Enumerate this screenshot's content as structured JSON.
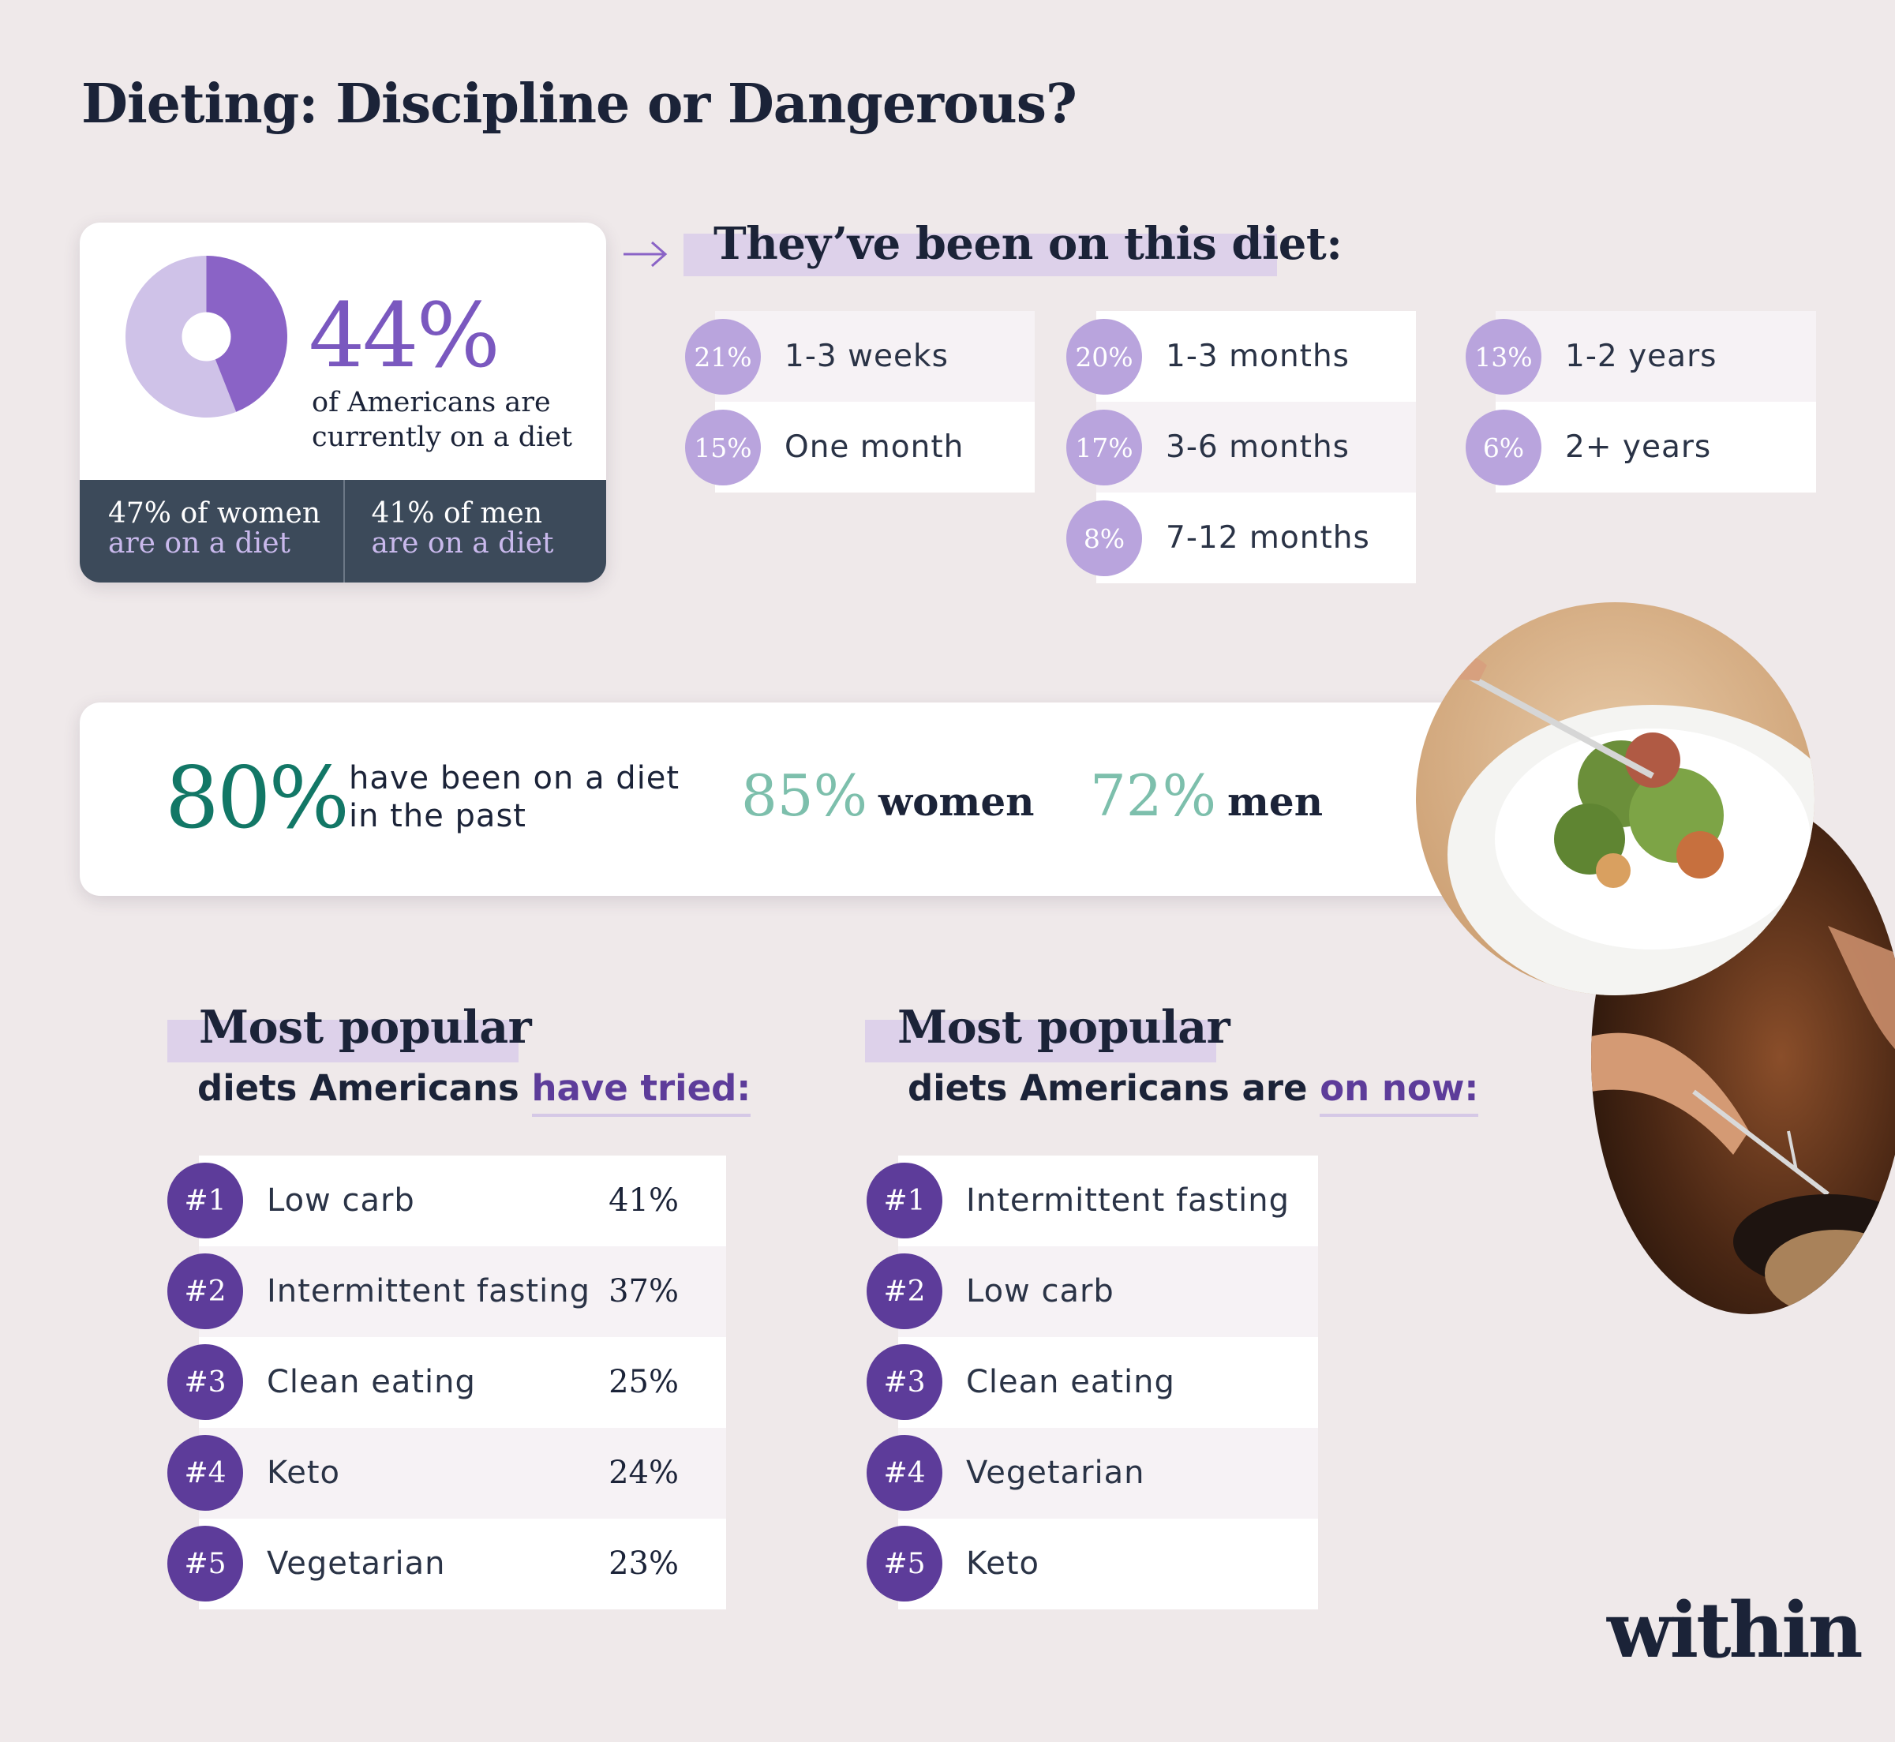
{
  "title": "Dieting: Discipline or Dangerous?",
  "current": {
    "percent": "44%",
    "percent_value": 44,
    "label": "of Americans are currently on a diet",
    "donut_colors": {
      "filled": "#8a63c6",
      "rest": "#cfc2e8"
    },
    "women_line1": "47% of women",
    "women_line2": "are on a diet",
    "men_line1": "41% of men",
    "men_line2": "are on a diet"
  },
  "duration": {
    "title": "They’ve been on this diet:",
    "items": [
      {
        "pct": "21%",
        "label": "1-3 weeks"
      },
      {
        "pct": "15%",
        "label": "One month"
      },
      {
        "pct": "20%",
        "label": "1-3 months"
      },
      {
        "pct": "17%",
        "label": "3-6 months"
      },
      {
        "pct": "8%",
        "label": "7-12 months"
      },
      {
        "pct": "13%",
        "label": "1-2 years"
      },
      {
        "pct": "6%",
        "label": "2+ years"
      }
    ]
  },
  "past": {
    "percent": "80%",
    "label": "have been on a diet in the past",
    "women_pct": "85%",
    "women_word": "women",
    "men_pct": "72%",
    "men_word": "men"
  },
  "tried": {
    "heading": "Most popular",
    "sub_prefix": "diets Americans ",
    "sub_accent": "have tried:",
    "items": [
      {
        "rank": "#1",
        "name": "Low carb",
        "pct": "41%"
      },
      {
        "rank": "#2",
        "name": "Intermittent fasting",
        "pct": "37%"
      },
      {
        "rank": "#3",
        "name": "Clean eating",
        "pct": "25%"
      },
      {
        "rank": "#4",
        "name": "Keto",
        "pct": "24%"
      },
      {
        "rank": "#5",
        "name": "Vegetarian",
        "pct": "23%"
      }
    ]
  },
  "now": {
    "heading": "Most popular",
    "sub_prefix": "diets Americans are ",
    "sub_accent": "on now:",
    "items": [
      {
        "rank": "#1",
        "name": "Intermittent fasting"
      },
      {
        "rank": "#2",
        "name": "Low carb"
      },
      {
        "rank": "#3",
        "name": "Clean eating"
      },
      {
        "rank": "#4",
        "name": "Vegetarian"
      },
      {
        "rank": "#5",
        "name": "Keto"
      }
    ]
  },
  "brand": "within",
  "colors": {
    "accent_purple": "#5d3c9a",
    "light_purple": "#b9a4dd",
    "teal": "#127766",
    "light_teal": "#7dbfac",
    "navy": "#1b2338",
    "background": "#efe9ea"
  }
}
